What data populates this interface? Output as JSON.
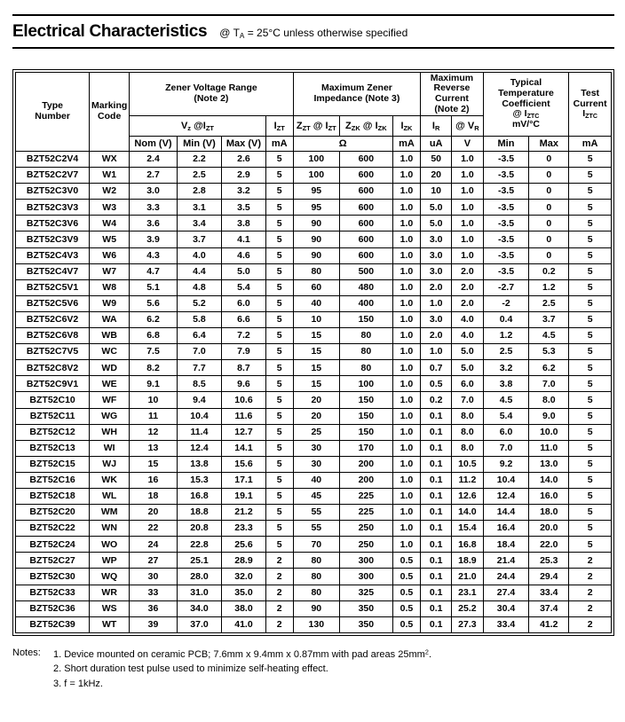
{
  "page": {
    "title": "Electrical Characteristics",
    "subtitle": "@ T~A~ = 25°C unless otherwise specified"
  },
  "table": {
    "group_headers": {
      "type_number": "Type\nNumber",
      "marking_code": "Marking\nCode",
      "zener_voltage_range": "Zener Voltage Range\n(Note 2)",
      "max_zener_impedance": "Maximum Zener\nImpedance (Note 3)",
      "max_reverse_current": "Maximum\nReverse\nCurrent\n(Note 2)",
      "temp_coefficient": "Typical\nTemperature\nCoefficient\n@ I~ZTC~\nmV/°C",
      "test_current": "Test\nCurrent\nI~ZTC~"
    },
    "sub_headers": {
      "vz_at_izt": "V~z~ @I~ZT~",
      "izt": "I~ZT~",
      "zzt_at_izt": "Z~ZT~ @ I~ZT~",
      "zzk_at_izk": "Z~ZK~ @ I~ZK~",
      "izk": "I~ZK~",
      "ir": "I~R~",
      "at_vr": "@ V~R~"
    },
    "units": {
      "nom": "Nom (V)",
      "min": "Min (V)",
      "max": "Max (V)",
      "izt_ma": "mA",
      "ohm": "Ω",
      "izk_ma": "mA",
      "ua": "uA",
      "v": "V",
      "tc_min": "Min",
      "tc_max": "Max",
      "itc_ma": "mA"
    },
    "rows": [
      [
        "BZT52C2V4",
        "WX",
        "2.4",
        "2.2",
        "2.6",
        "5",
        "100",
        "600",
        "1.0",
        "50",
        "1.0",
        "-3.5",
        "0",
        "5"
      ],
      [
        "BZT52C2V7",
        "W1",
        "2.7",
        "2.5",
        "2.9",
        "5",
        "100",
        "600",
        "1.0",
        "20",
        "1.0",
        "-3.5",
        "0",
        "5"
      ],
      [
        "BZT52C3V0",
        "W2",
        "3.0",
        "2.8",
        "3.2",
        "5",
        "95",
        "600",
        "1.0",
        "10",
        "1.0",
        "-3.5",
        "0",
        "5"
      ],
      [
        "BZT52C3V3",
        "W3",
        "3.3",
        "3.1",
        "3.5",
        "5",
        "95",
        "600",
        "1.0",
        "5.0",
        "1.0",
        "-3.5",
        "0",
        "5"
      ],
      [
        "BZT52C3V6",
        "W4",
        "3.6",
        "3.4",
        "3.8",
        "5",
        "90",
        "600",
        "1.0",
        "5.0",
        "1.0",
        "-3.5",
        "0",
        "5"
      ],
      [
        "BZT52C3V9",
        "W5",
        "3.9",
        "3.7",
        "4.1",
        "5",
        "90",
        "600",
        "1.0",
        "3.0",
        "1.0",
        "-3.5",
        "0",
        "5"
      ],
      [
        "BZT52C4V3",
        "W6",
        "4.3",
        "4.0",
        "4.6",
        "5",
        "90",
        "600",
        "1.0",
        "3.0",
        "1.0",
        "-3.5",
        "0",
        "5"
      ],
      [
        "BZT52C4V7",
        "W7",
        "4.7",
        "4.4",
        "5.0",
        "5",
        "80",
        "500",
        "1.0",
        "3.0",
        "2.0",
        "-3.5",
        "0.2",
        "5"
      ],
      [
        "BZT52C5V1",
        "W8",
        "5.1",
        "4.8",
        "5.4",
        "5",
        "60",
        "480",
        "1.0",
        "2.0",
        "2.0",
        "-2.7",
        "1.2",
        "5"
      ],
      [
        "BZT52C5V6",
        "W9",
        "5.6",
        "5.2",
        "6.0",
        "5",
        "40",
        "400",
        "1.0",
        "1.0",
        "2.0",
        "-2",
        "2.5",
        "5"
      ],
      [
        "BZT52C6V2",
        "WA",
        "6.2",
        "5.8",
        "6.6",
        "5",
        "10",
        "150",
        "1.0",
        "3.0",
        "4.0",
        "0.4",
        "3.7",
        "5"
      ],
      [
        "BZT52C6V8",
        "WB",
        "6.8",
        "6.4",
        "7.2",
        "5",
        "15",
        "80",
        "1.0",
        "2.0",
        "4.0",
        "1.2",
        "4.5",
        "5"
      ],
      [
        "BZT52C7V5",
        "WC",
        "7.5",
        "7.0",
        "7.9",
        "5",
        "15",
        "80",
        "1.0",
        "1.0",
        "5.0",
        "2.5",
        "5.3",
        "5"
      ],
      [
        "BZT52C8V2",
        "WD",
        "8.2",
        "7.7",
        "8.7",
        "5",
        "15",
        "80",
        "1.0",
        "0.7",
        "5.0",
        "3.2",
        "6.2",
        "5"
      ],
      [
        "BZT52C9V1",
        "WE",
        "9.1",
        "8.5",
        "9.6",
        "5",
        "15",
        "100",
        "1.0",
        "0.5",
        "6.0",
        "3.8",
        "7.0",
        "5"
      ],
      [
        "BZT52C10",
        "WF",
        "10",
        "9.4",
        "10.6",
        "5",
        "20",
        "150",
        "1.0",
        "0.2",
        "7.0",
        "4.5",
        "8.0",
        "5"
      ],
      [
        "BZT52C11",
        "WG",
        "11",
        "10.4",
        "11.6",
        "5",
        "20",
        "150",
        "1.0",
        "0.1",
        "8.0",
        "5.4",
        "9.0",
        "5"
      ],
      [
        "BZT52C12",
        "WH",
        "12",
        "11.4",
        "12.7",
        "5",
        "25",
        "150",
        "1.0",
        "0.1",
        "8.0",
        "6.0",
        "10.0",
        "5"
      ],
      [
        "BZT52C13",
        "WI",
        "13",
        "12.4",
        "14.1",
        "5",
        "30",
        "170",
        "1.0",
        "0.1",
        "8.0",
        "7.0",
        "11.0",
        "5"
      ],
      [
        "BZT52C15",
        "WJ",
        "15",
        "13.8",
        "15.6",
        "5",
        "30",
        "200",
        "1.0",
        "0.1",
        "10.5",
        "9.2",
        "13.0",
        "5"
      ],
      [
        "BZT52C16",
        "WK",
        "16",
        "15.3",
        "17.1",
        "5",
        "40",
        "200",
        "1.0",
        "0.1",
        "11.2",
        "10.4",
        "14.0",
        "5"
      ],
      [
        "BZT52C18",
        "WL",
        "18",
        "16.8",
        "19.1",
        "5",
        "45",
        "225",
        "1.0",
        "0.1",
        "12.6",
        "12.4",
        "16.0",
        "5"
      ],
      [
        "BZT52C20",
        "WM",
        "20",
        "18.8",
        "21.2",
        "5",
        "55",
        "225",
        "1.0",
        "0.1",
        "14.0",
        "14.4",
        "18.0",
        "5"
      ],
      [
        "BZT52C22",
        "WN",
        "22",
        "20.8",
        "23.3",
        "5",
        "55",
        "250",
        "1.0",
        "0.1",
        "15.4",
        "16.4",
        "20.0",
        "5"
      ],
      [
        "BZT52C24",
        "WO",
        "24",
        "22.8",
        "25.6",
        "5",
        "70",
        "250",
        "1.0",
        "0.1",
        "16.8",
        "18.4",
        "22.0",
        "5"
      ],
      [
        "BZT52C27",
        "WP",
        "27",
        "25.1",
        "28.9",
        "2",
        "80",
        "300",
        "0.5",
        "0.1",
        "18.9",
        "21.4",
        "25.3",
        "2"
      ],
      [
        "BZT52C30",
        "WQ",
        "30",
        "28.0",
        "32.0",
        "2",
        "80",
        "300",
        "0.5",
        "0.1",
        "21.0",
        "24.4",
        "29.4",
        "2"
      ],
      [
        "BZT52C33",
        "WR",
        "33",
        "31.0",
        "35.0",
        "2",
        "80",
        "325",
        "0.5",
        "0.1",
        "23.1",
        "27.4",
        "33.4",
        "2"
      ],
      [
        "BZT52C36",
        "WS",
        "36",
        "34.0",
        "38.0",
        "2",
        "90",
        "350",
        "0.5",
        "0.1",
        "25.2",
        "30.4",
        "37.4",
        "2"
      ],
      [
        "BZT52C39",
        "WT",
        "39",
        "37.0",
        "41.0",
        "2",
        "130",
        "350",
        "0.5",
        "0.1",
        "27.3",
        "33.4",
        "41.2",
        "2"
      ]
    ]
  },
  "notes": {
    "label": "Notes:",
    "items": [
      "1. Device mounted on ceramic PCB; 7.6mm x 9.4mm x 0.87mm with pad areas 25mm^2^.",
      "2. Short duration test pulse used to minimize self-heating effect.",
      "3. f = 1kHz."
    ]
  }
}
